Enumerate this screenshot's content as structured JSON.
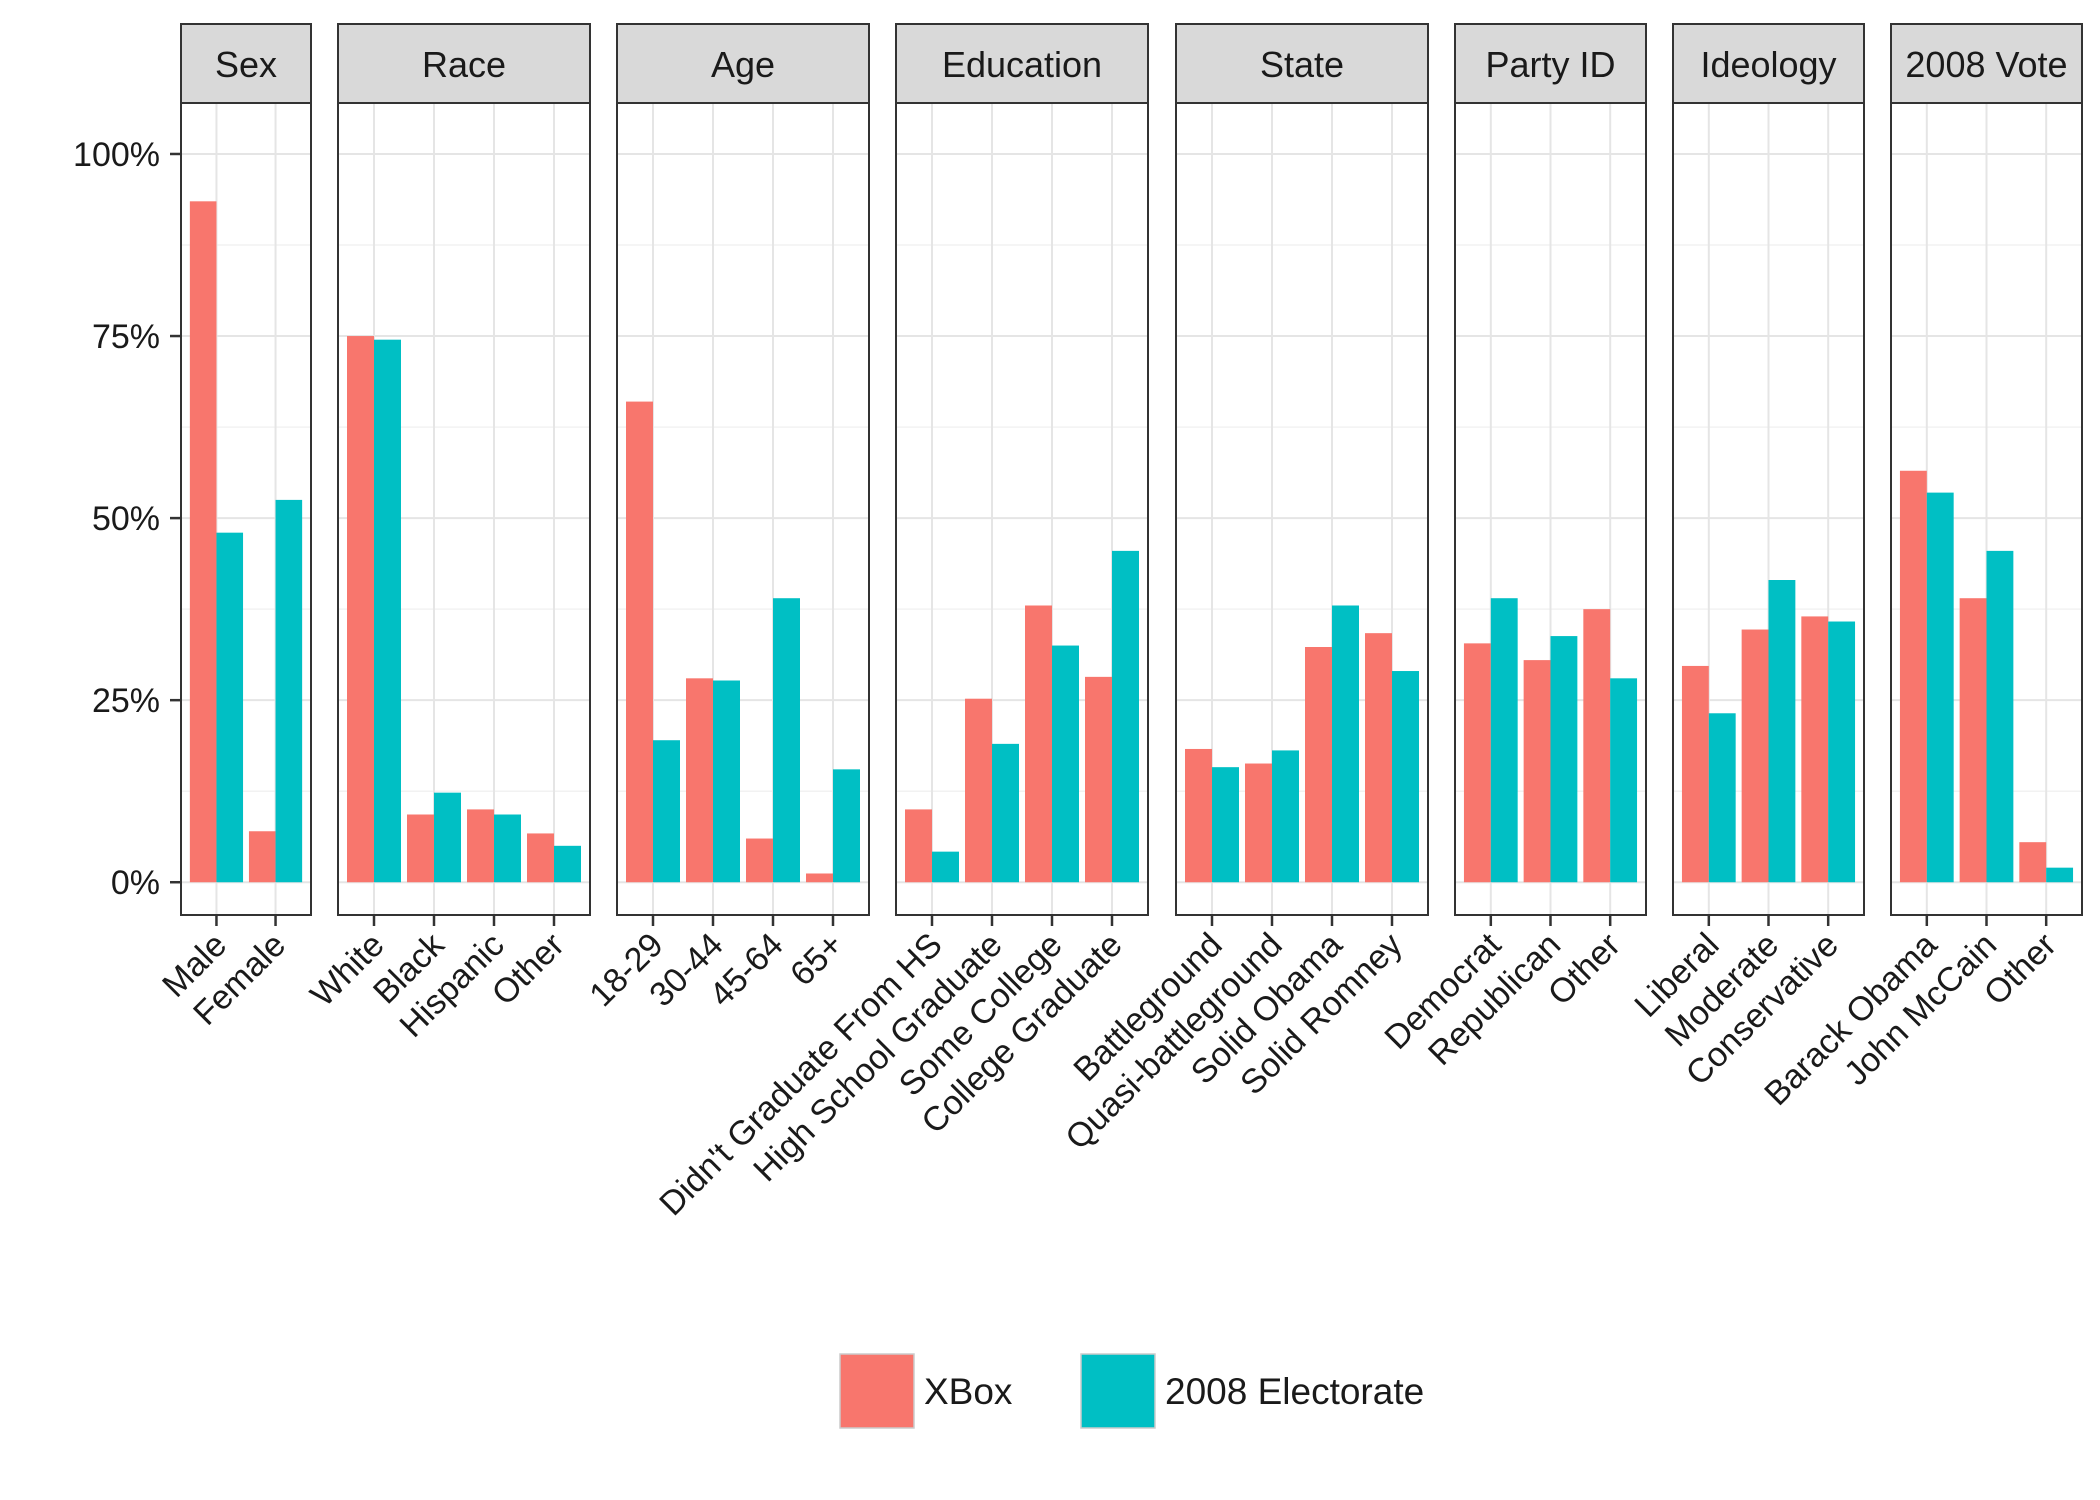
{
  "chart_data": {
    "type": "bar",
    "y_tick_labels": [
      "0%",
      "25%",
      "50%",
      "75%",
      "100%"
    ],
    "ylim": [
      -0.045,
      1.07
    ],
    "grid": true,
    "legend_position": "bottom",
    "series": [
      {
        "name": "XBox",
        "color": "#F8766D"
      },
      {
        "name": "2008 Electorate",
        "color": "#00BFC4"
      }
    ],
    "facets": [
      {
        "title": "Sex",
        "categories": [
          "Male",
          "Female"
        ],
        "values": {
          "XBox": [
            0.935,
            0.07
          ],
          "2008 Electorate": [
            0.48,
            0.525
          ]
        }
      },
      {
        "title": "Race",
        "categories": [
          "White",
          "Black",
          "Hispanic",
          "Other"
        ],
        "values": {
          "XBox": [
            0.75,
            0.093,
            0.1,
            0.067
          ],
          "2008 Electorate": [
            0.745,
            0.123,
            0.093,
            0.05
          ]
        }
      },
      {
        "title": "Age",
        "categories": [
          "18-29",
          "30-44",
          "45-64",
          "65+"
        ],
        "values": {
          "XBox": [
            0.66,
            0.28,
            0.06,
            0.012
          ],
          "2008 Electorate": [
            0.195,
            0.277,
            0.39,
            0.155
          ]
        }
      },
      {
        "title": "Education",
        "categories": [
          "Didn't Graduate From HS",
          "High School Graduate",
          "Some College",
          "College Graduate"
        ],
        "values": {
          "XBox": [
            0.1,
            0.252,
            0.38,
            0.282
          ],
          "2008 Electorate": [
            0.042,
            0.19,
            0.325,
            0.455
          ]
        }
      },
      {
        "title": "State",
        "categories": [
          "Battleground",
          "Quasi-battleground",
          "Solid Obama",
          "Solid Romney"
        ],
        "values": {
          "XBox": [
            0.183,
            0.163,
            0.323,
            0.342
          ],
          "2008 Electorate": [
            0.158,
            0.181,
            0.38,
            0.29
          ]
        }
      },
      {
        "title": "Party ID",
        "categories": [
          "Democrat",
          "Republican",
          "Other"
        ],
        "values": {
          "XBox": [
            0.328,
            0.305,
            0.375
          ],
          "2008 Electorate": [
            0.39,
            0.338,
            0.28
          ]
        }
      },
      {
        "title": "Ideology",
        "categories": [
          "Liberal",
          "Moderate",
          "Conservative"
        ],
        "values": {
          "XBox": [
            0.297,
            0.347,
            0.365
          ],
          "2008 Electorate": [
            0.232,
            0.415,
            0.358
          ]
        }
      },
      {
        "title": "2008 Vote",
        "categories": [
          "Barack Obama",
          "John McCain",
          "Other"
        ],
        "values": {
          "XBox": [
            0.565,
            0.39,
            0.055
          ],
          "2008 Electorate": [
            0.535,
            0.455,
            0.02
          ]
        }
      }
    ]
  }
}
